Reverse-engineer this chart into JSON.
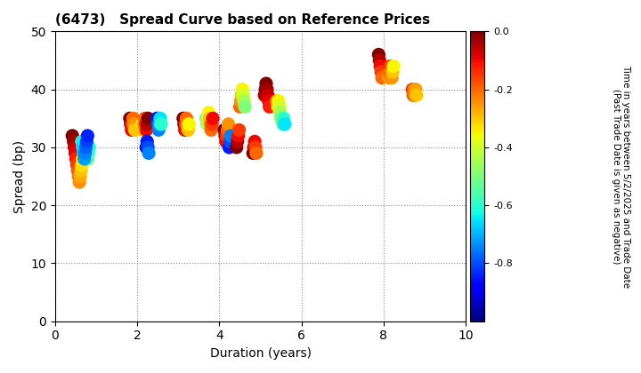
{
  "title": "(6473)   Spread Curve based on Reference Prices",
  "xlabel": "Duration (years)",
  "ylabel": "Spread (bp)",
  "colorbar_label": "Time in years between 5/2/2025 and Trade Date\n(Past Trade Date is given as negative)",
  "xlim": [
    0,
    10
  ],
  "ylim": [
    0,
    50
  ],
  "xticks": [
    0,
    2,
    4,
    6,
    8,
    10
  ],
  "yticks": [
    0,
    10,
    20,
    30,
    40,
    50
  ],
  "cmap": "jet",
  "clim": [
    -1.0,
    0.0
  ],
  "cticks": [
    0.0,
    -0.2,
    -0.4,
    -0.6,
    -0.8
  ],
  "background_color": "#ffffff",
  "point_size": 120,
  "scatter_data": {
    "duration": [
      0.42,
      0.45,
      0.47,
      0.49,
      0.51,
      0.53,
      0.55,
      0.57,
      0.59,
      0.61,
      0.63,
      0.65,
      0.67,
      0.69,
      0.71,
      0.73,
      0.75,
      0.77,
      0.79,
      0.81,
      0.83,
      0.65,
      0.67,
      0.69,
      0.71,
      0.73,
      0.75,
      0.77,
      0.79,
      1.82,
      1.84,
      1.86,
      1.88,
      1.9,
      1.92,
      1.94,
      2.12,
      2.14,
      2.16,
      2.18,
      2.2,
      2.22,
      2.24,
      2.26,
      2.48,
      2.5,
      2.52,
      2.54,
      2.56,
      2.58,
      2.22,
      2.24,
      2.26,
      2.28,
      3.12,
      3.14,
      3.16,
      3.18,
      3.2,
      3.22,
      3.24,
      3.26,
      3.68,
      3.7,
      3.72,
      3.74,
      3.76,
      3.78,
      3.8,
      3.82,
      3.84,
      4.12,
      4.14,
      4.16,
      4.18,
      4.2,
      4.22,
      4.24,
      4.26,
      4.28,
      4.42,
      4.44,
      4.46,
      4.48,
      4.5,
      4.52,
      4.54,
      4.56,
      4.58,
      4.6,
      4.62,
      4.82,
      4.84,
      4.86,
      4.88,
      4.9,
      5.1,
      5.12,
      5.14,
      5.16,
      5.18,
      5.2,
      5.22,
      5.4,
      5.42,
      5.44,
      5.46,
      5.48,
      5.5,
      5.55,
      5.57,
      5.59,
      7.88,
      7.9,
      7.92,
      7.94,
      7.96,
      8.12,
      8.14,
      8.16,
      8.18,
      8.2,
      8.22,
      8.24,
      8.7,
      8.72,
      8.74,
      8.76,
      8.78,
      8.8
    ],
    "spread": [
      32,
      31,
      30,
      29,
      28,
      27,
      26,
      25,
      24,
      25,
      26,
      27,
      28,
      29,
      30,
      31,
      30,
      29,
      28,
      29,
      30,
      31,
      30,
      29,
      28,
      29,
      30,
      31,
      32,
      35,
      34,
      33,
      34,
      35,
      34,
      33,
      34,
      33,
      34,
      35,
      34,
      33,
      34,
      35,
      35,
      34,
      33,
      34,
      35,
      34,
      30,
      31,
      30,
      29,
      35,
      34,
      33,
      34,
      35,
      34,
      33,
      34,
      35,
      34,
      35,
      36,
      35,
      34,
      33,
      34,
      35,
      33,
      32,
      31,
      32,
      33,
      34,
      30,
      31,
      32,
      30,
      31,
      32,
      33,
      37,
      38,
      39,
      40,
      39,
      38,
      37,
      29,
      30,
      31,
      30,
      29,
      39,
      40,
      41,
      40,
      39,
      38,
      37,
      38,
      37,
      38,
      37,
      36,
      35,
      34,
      35,
      34,
      46,
      45,
      44,
      43,
      42,
      42,
      43,
      44,
      43,
      42,
      43,
      44,
      40,
      39,
      40,
      39,
      40,
      39
    ],
    "color_val": [
      0.0,
      -0.03,
      -0.06,
      -0.09,
      -0.12,
      -0.15,
      -0.18,
      -0.21,
      -0.24,
      -0.27,
      -0.3,
      -0.33,
      -0.36,
      -0.39,
      -0.42,
      -0.45,
      -0.48,
      -0.51,
      -0.54,
      -0.57,
      -0.6,
      -0.63,
      -0.66,
      -0.69,
      -0.72,
      -0.75,
      -0.78,
      -0.81,
      -0.84,
      0.0,
      -0.05,
      -0.1,
      -0.15,
      -0.2,
      -0.25,
      -0.3,
      -0.35,
      -0.3,
      -0.25,
      -0.2,
      -0.15,
      -0.1,
      -0.05,
      0.0,
      -0.85,
      -0.8,
      -0.75,
      -0.7,
      -0.65,
      -0.6,
      -0.9,
      -0.85,
      -0.8,
      -0.75,
      0.0,
      -0.05,
      -0.1,
      -0.15,
      -0.2,
      -0.25,
      -0.3,
      -0.35,
      -0.5,
      -0.45,
      -0.4,
      -0.35,
      -0.3,
      -0.25,
      -0.2,
      -0.15,
      -0.1,
      0.0,
      -0.05,
      -0.1,
      -0.15,
      -0.2,
      -0.25,
      -0.85,
      -0.8,
      -0.75,
      0.0,
      -0.05,
      -0.1,
      -0.15,
      -0.2,
      -0.25,
      -0.3,
      -0.35,
      -0.4,
      -0.45,
      -0.5,
      0.0,
      -0.05,
      -0.1,
      -0.15,
      -0.2,
      -0.05,
      -0.02,
      0.0,
      -0.03,
      -0.06,
      -0.09,
      -0.12,
      -0.25,
      -0.3,
      -0.35,
      -0.4,
      -0.45,
      -0.5,
      -0.55,
      -0.6,
      -0.65,
      0.0,
      -0.05,
      -0.1,
      -0.15,
      -0.2,
      -0.25,
      -0.2,
      -0.15,
      -0.2,
      -0.25,
      -0.3,
      -0.35,
      -0.15,
      -0.18,
      -0.2,
      -0.23,
      -0.26,
      -0.3
    ]
  }
}
